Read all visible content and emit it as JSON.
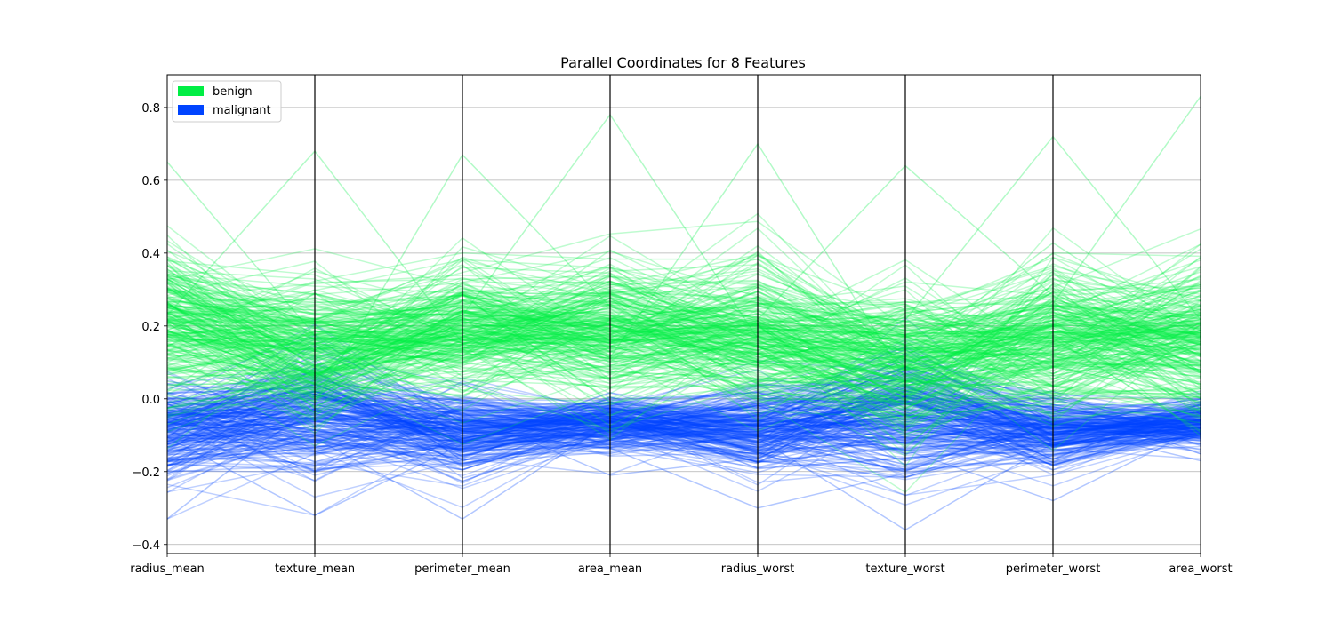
{
  "chart_data": {
    "type": "parallel_coordinates",
    "title": "Parallel Coordinates for 8 Features",
    "axes": [
      "radius_mean",
      "texture_mean",
      "perimeter_mean",
      "area_mean",
      "radius_worst",
      "texture_worst",
      "perimeter_worst",
      "area_worst"
    ],
    "ylim": [
      -0.425,
      0.89
    ],
    "yticks": [
      -0.4,
      -0.2,
      0.0,
      0.2,
      0.4,
      0.6,
      0.8
    ],
    "ytick_labels": [
      "−0.4",
      "−0.2",
      "0.0",
      "0.2",
      "0.4",
      "0.6",
      "0.8"
    ],
    "grid": true,
    "legend": {
      "placement": "top-left",
      "entries": [
        {
          "label": "benign",
          "color": "#00ee44"
        },
        {
          "label": "malignant",
          "color": "#0044ff"
        }
      ]
    },
    "series": [
      {
        "class": "benign",
        "color": "#00ee44",
        "mean": [
          0.21,
          0.12,
          0.19,
          0.18,
          0.17,
          0.09,
          0.17,
          0.16
        ],
        "spread": [
          0.13,
          0.12,
          0.12,
          0.12,
          0.12,
          0.12,
          0.12,
          0.12
        ],
        "max": [
          0.65,
          0.68,
          0.67,
          0.78,
          0.7,
          0.64,
          0.72,
          0.83
        ],
        "count": 260
      },
      {
        "class": "malignant",
        "color": "#0044ff",
        "mean": [
          -0.09,
          -0.05,
          -0.09,
          -0.07,
          -0.09,
          -0.05,
          -0.09,
          -0.07
        ],
        "spread": [
          0.08,
          0.12,
          0.07,
          0.05,
          0.07,
          0.12,
          0.06,
          0.04
        ],
        "min": [
          -0.33,
          -0.32,
          -0.33,
          -0.21,
          -0.3,
          -0.36,
          -0.28,
          -0.17
        ],
        "count": 240
      }
    ]
  }
}
